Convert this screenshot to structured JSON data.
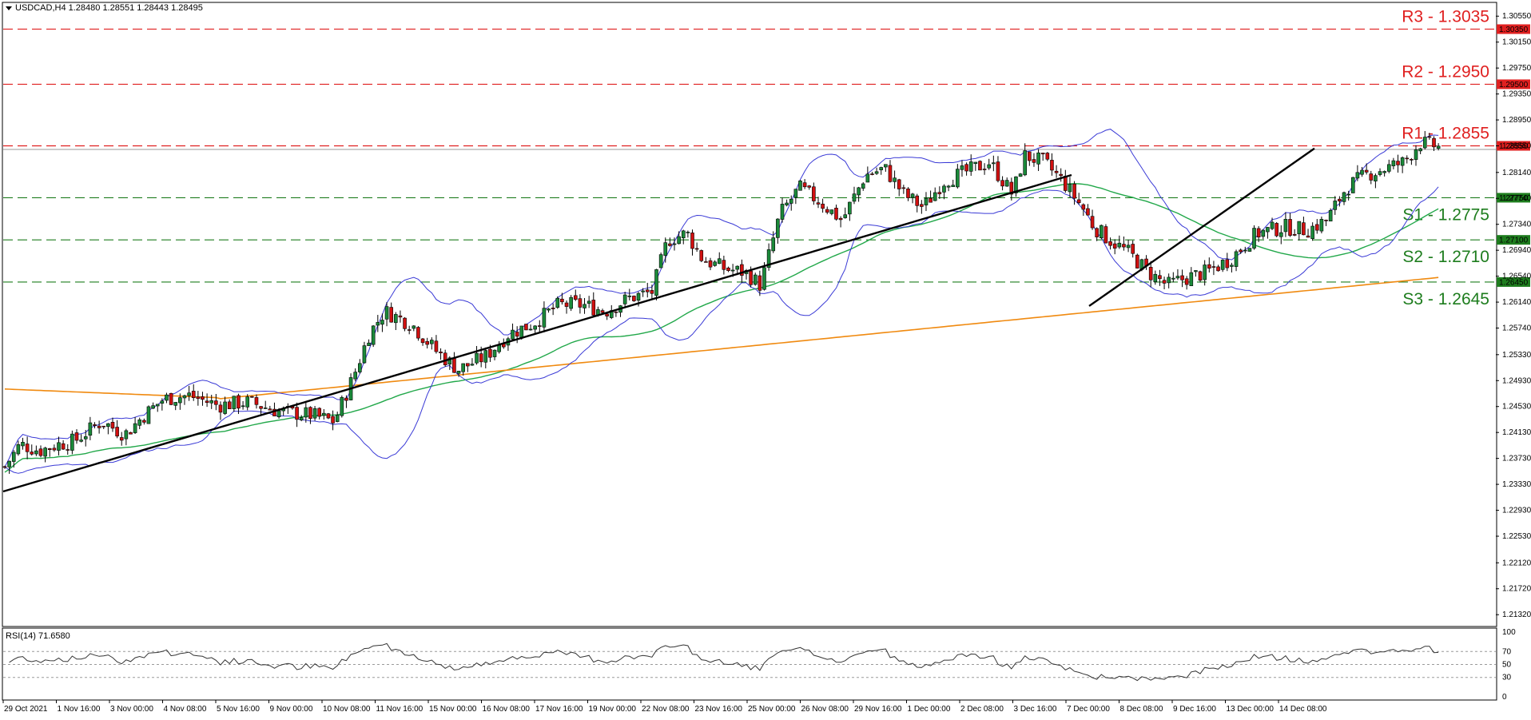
{
  "header": {
    "symbol_line": "USDCAD,H4  1.28480 1.28551 1.28443 1.28495",
    "collapse_icon": "triangle-down-icon"
  },
  "rsi": {
    "title": "RSI(14) 71.6580",
    "levels": [
      100,
      70,
      50,
      30,
      0
    ],
    "labels": [
      "100",
      "70",
      "50",
      "30",
      "0"
    ],
    "period": 14,
    "value": 71.658
  },
  "price_axis": {
    "ticks": [
      "1.30550",
      "1.30150",
      "1.29750",
      "1.29350",
      "1.28950",
      "1.28550",
      "1.28140",
      "1.27740",
      "1.27340",
      "1.26940",
      "1.26540",
      "1.26140",
      "1.25740",
      "1.25330",
      "1.24930",
      "1.24530",
      "1.24130",
      "1.23730",
      "1.23330",
      "1.22930",
      "1.22530",
      "1.22120",
      "1.21720",
      "1.21320"
    ],
    "range": [
      1.2115,
      1.3075
    ]
  },
  "time_axis": {
    "labels": [
      "29 Oct 2021",
      "1 Nov 16:00",
      "3 Nov 00:00",
      "4 Nov 08:00",
      "5 Nov 16:00",
      "9 Nov 00:00",
      "10 Nov 08:00",
      "11 Nov 16:00",
      "15 Nov 00:00",
      "16 Nov 08:00",
      "17 Nov 16:00",
      "19 Nov 00:00",
      "22 Nov 08:00",
      "23 Nov 16:00",
      "25 Nov 00:00",
      "26 Nov 08:00",
      "29 Nov 16:00",
      "1 Dec 00:00",
      "2 Dec 08:00",
      "3 Dec 16:00",
      "7 Dec 00:00",
      "8 Dec 08:00",
      "9 Dec 16:00",
      "13 Dec 00:00",
      "14 Dec 08:00"
    ]
  },
  "levels": [
    {
      "name": "R3",
      "label": "R3 - 1.3035",
      "price": 1.3035,
      "tag": "1.30350",
      "kind": "resistance"
    },
    {
      "name": "R2",
      "label": "R2 - 1.2950",
      "price": 1.295,
      "tag": "1.29500",
      "kind": "resistance"
    },
    {
      "name": "R1",
      "label": "R1 - 1.2855",
      "price": 1.2855,
      "tag": "1.28550",
      "kind": "resistance"
    },
    {
      "name": "S1",
      "label": "S1 - 1.2775",
      "price": 1.2775,
      "tag": "1.27750",
      "kind": "support"
    },
    {
      "name": "S2",
      "label": "S2 - 1.2710",
      "price": 1.271,
      "tag": "1.27100",
      "kind": "support"
    },
    {
      "name": "S3",
      "label": "S3 - 1.2645",
      "price": 1.2645,
      "tag": "1.26450",
      "kind": "support"
    }
  ],
  "current_price": {
    "price": 1.28495
  },
  "colors": {
    "bull": "#1b8a3a",
    "bear": "#d01010",
    "resistance": "#e02020",
    "support": "#1e7d1e",
    "bollinger": "#3a3ad6",
    "ma_green": "#22a84a",
    "ma_orange": "#f08a10",
    "trendline": "#000000",
    "tag_bg_res": "#e02020",
    "tag_bg_sup": "#1e7d1e"
  },
  "chart_data": {
    "type": "candlestick",
    "symbol": "USDCAD",
    "timeframe": "H4",
    "close_path": [
      [
        0,
        1.236
      ],
      [
        8,
        1.2395
      ],
      [
        18,
        1.2385
      ],
      [
        28,
        1.2395
      ],
      [
        36,
        1.24
      ],
      [
        50,
        1.243
      ],
      [
        62,
        1.241
      ],
      [
        72,
        1.244
      ],
      [
        82,
        1.2465
      ],
      [
        95,
        1.247
      ],
      [
        110,
        1.2455
      ],
      [
        126,
        1.246
      ],
      [
        142,
        1.2445
      ],
      [
        158,
        1.244
      ],
      [
        170,
        1.243
      ],
      [
        180,
        1.25
      ],
      [
        188,
        1.2565
      ],
      [
        196,
        1.26
      ],
      [
        210,
        1.258
      ],
      [
        222,
        1.254
      ],
      [
        234,
        1.251
      ],
      [
        248,
        1.253
      ],
      [
        260,
        1.2565
      ],
      [
        272,
        1.258
      ],
      [
        286,
        1.261
      ],
      [
        298,
        1.261
      ],
      [
        310,
        1.26
      ],
      [
        322,
        1.262
      ],
      [
        334,
        1.263
      ],
      [
        342,
        1.271
      ],
      [
        352,
        1.272
      ],
      [
        360,
        1.268
      ],
      [
        372,
        1.2665
      ],
      [
        382,
        1.266
      ],
      [
        390,
        1.264
      ],
      [
        400,
        1.275
      ],
      [
        410,
        1.279
      ],
      [
        420,
        1.277
      ],
      [
        432,
        1.274
      ],
      [
        444,
        1.281
      ],
      [
        454,
        1.282
      ],
      [
        464,
        1.278
      ],
      [
        474,
        1.276
      ],
      [
        484,
        1.28
      ],
      [
        496,
        1.2815
      ],
      [
        508,
        1.283
      ],
      [
        520,
        1.278
      ],
      [
        526,
        1.284
      ],
      [
        536,
        1.283
      ],
      [
        546,
        1.28
      ],
      [
        556,
        1.276
      ],
      [
        562,
        1.273
      ],
      [
        570,
        1.271
      ],
      [
        580,
        1.269
      ],
      [
        590,
        1.266
      ],
      [
        600,
        1.264
      ],
      [
        608,
        1.265
      ],
      [
        620,
        1.266
      ],
      [
        632,
        1.268
      ],
      [
        646,
        1.272
      ],
      [
        660,
        1.273
      ],
      [
        672,
        1.2725
      ],
      [
        682,
        1.274
      ],
      [
        692,
        1.279
      ],
      [
        702,
        1.281
      ],
      [
        712,
        1.282
      ],
      [
        722,
        1.283
      ],
      [
        730,
        1.286
      ],
      [
        738,
        1.2855
      ],
      [
        742,
        1.28495
      ]
    ],
    "ylim": [
      1.2115,
      1.3075
    ],
    "rsi_last": 71.658
  }
}
